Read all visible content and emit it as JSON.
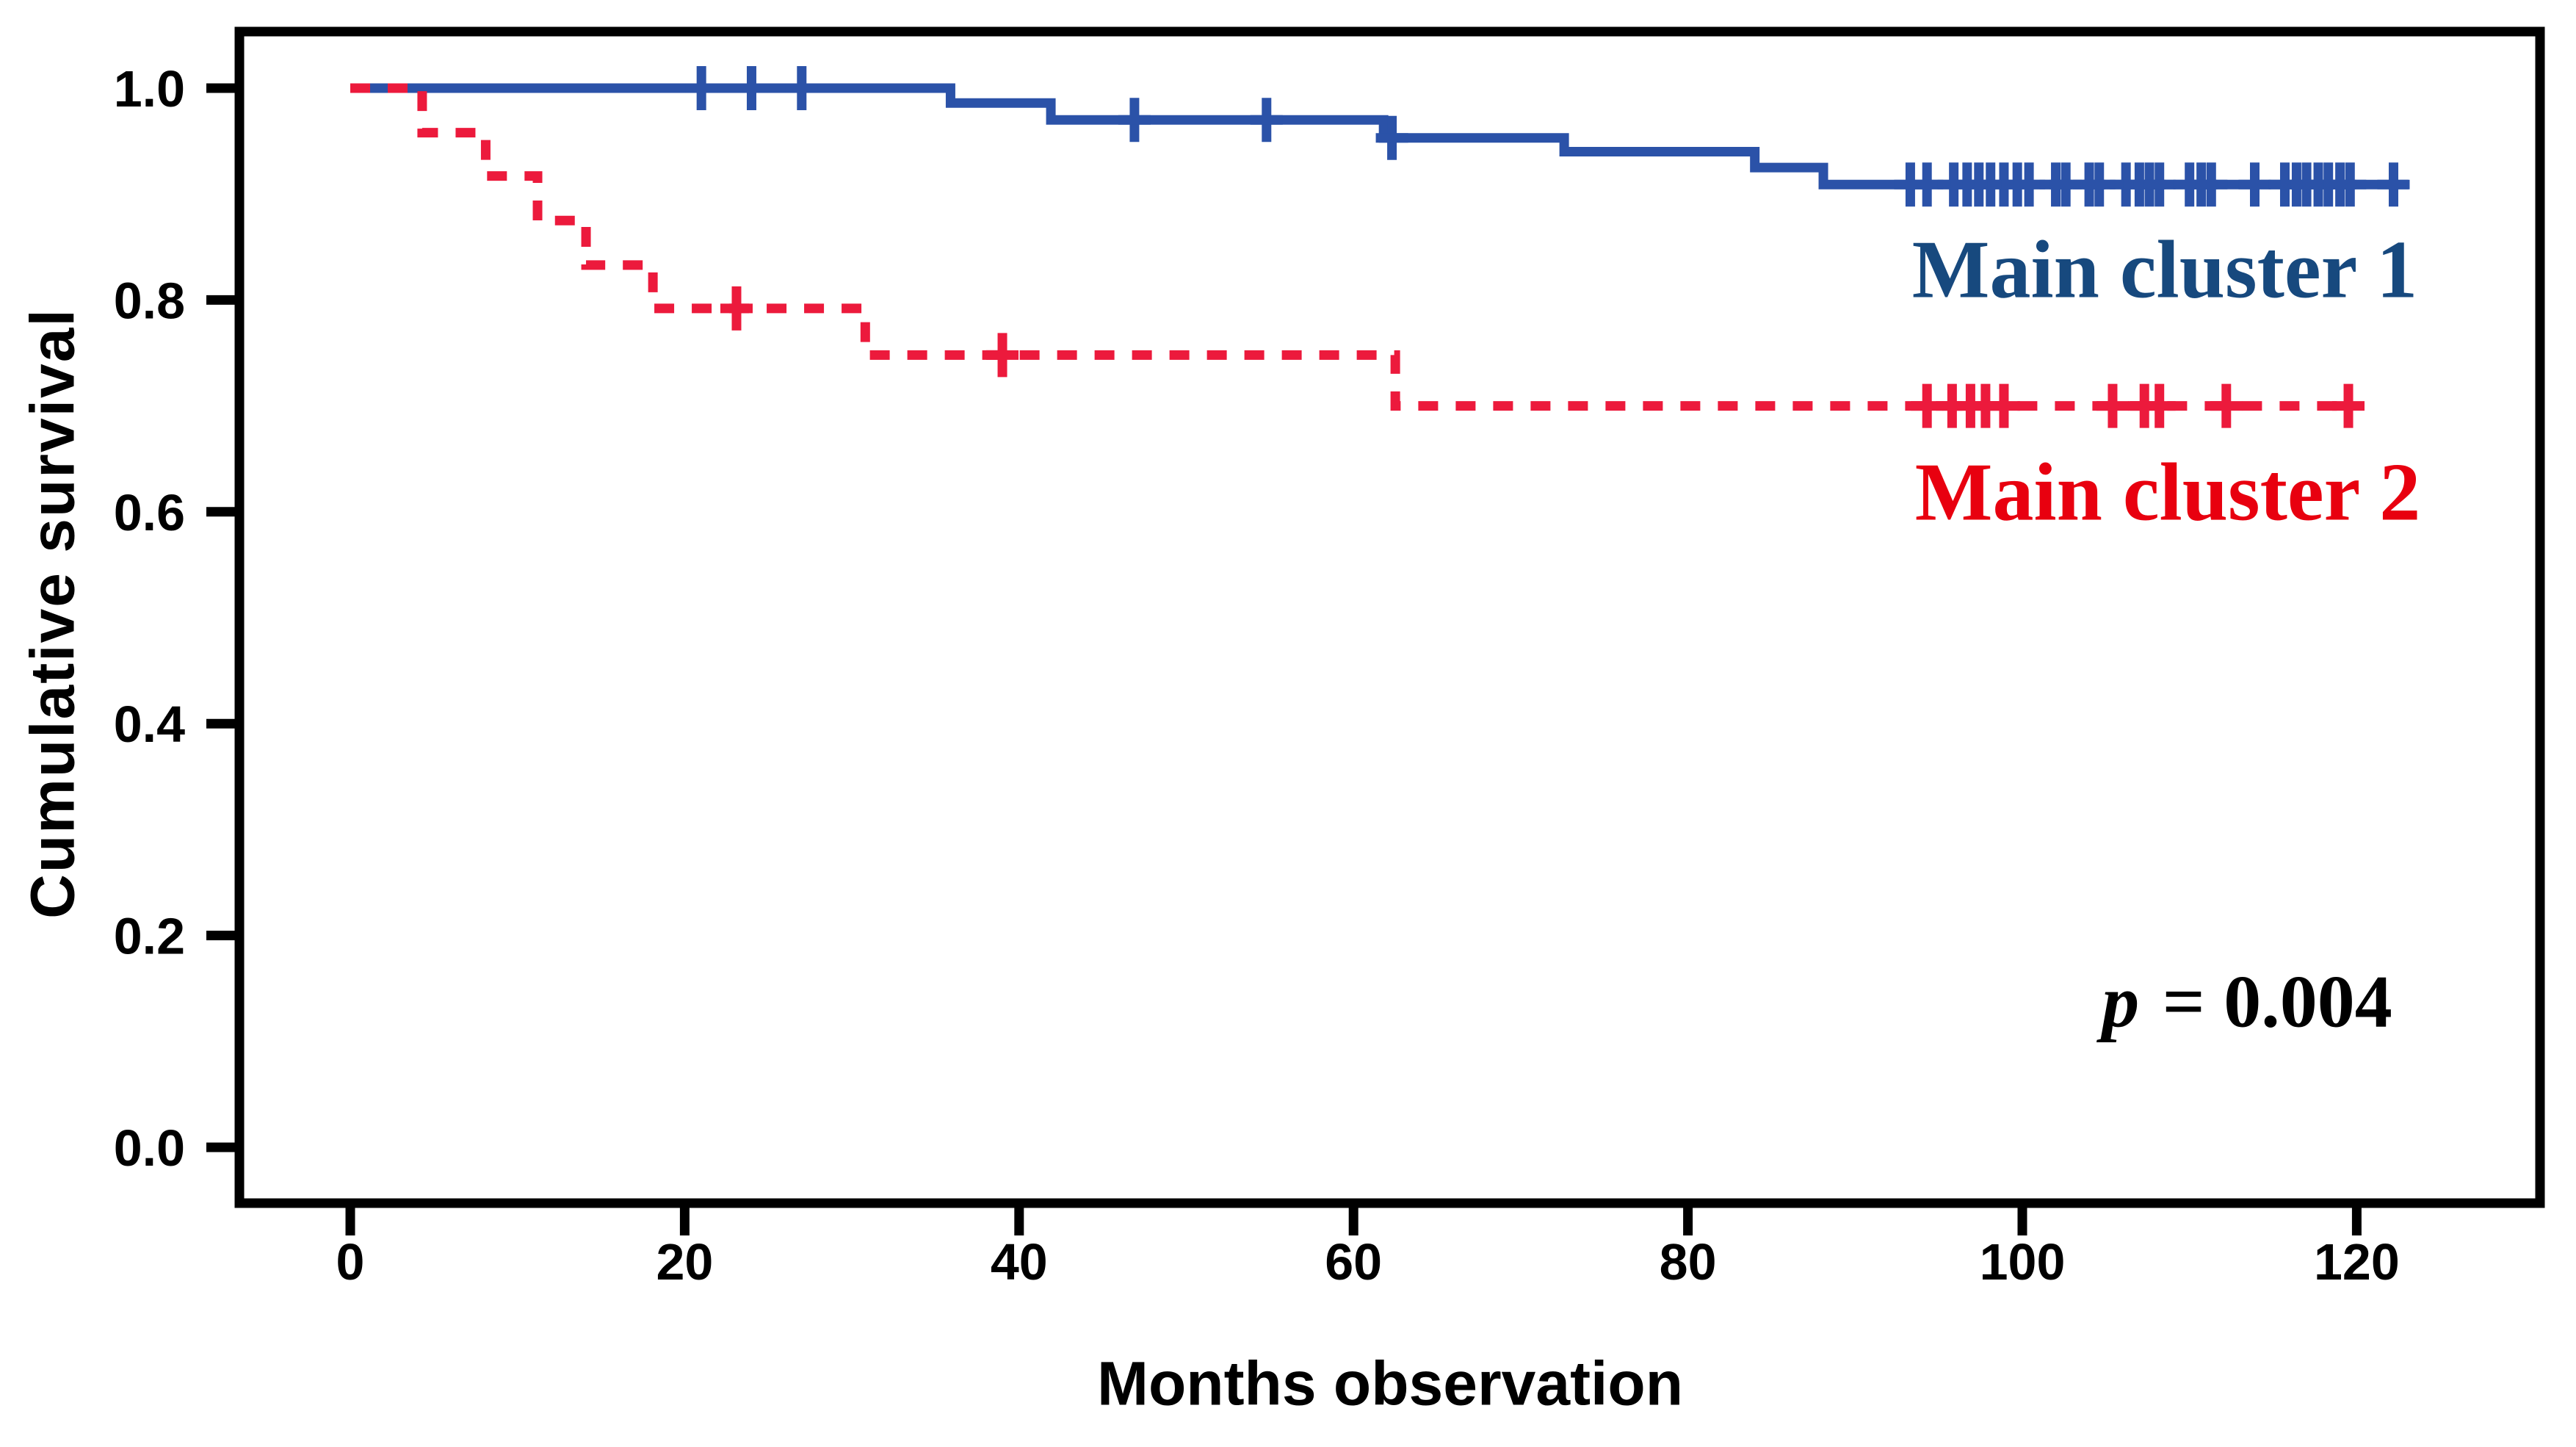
{
  "chart_data": {
    "type": "line",
    "subtype": "kaplan-meier-step",
    "title": "",
    "xlabel": "Months observation",
    "ylabel": "Cumulative survival",
    "xlim": [
      0,
      120
    ],
    "ylim": [
      0.0,
      1.0
    ],
    "grid": "off",
    "legend_position": "inside-right",
    "p_label": {
      "symbol": "p",
      "rest": " = 0.004"
    },
    "x_ticks": [
      {
        "v": 0,
        "label": "0"
      },
      {
        "v": 20,
        "label": "20"
      },
      {
        "v": 40,
        "label": "40"
      },
      {
        "v": 60,
        "label": "60"
      },
      {
        "v": 80,
        "label": "80"
      },
      {
        "v": 100,
        "label": "100"
      },
      {
        "v": 120,
        "label": "120"
      }
    ],
    "y_ticks": [
      {
        "v": 0.0,
        "label": "0.0"
      },
      {
        "v": 0.2,
        "label": "0.2"
      },
      {
        "v": 0.4,
        "label": "0.4"
      },
      {
        "v": 0.6,
        "label": "0.6"
      },
      {
        "v": 0.8,
        "label": "0.8"
      },
      {
        "v": 1.0,
        "label": "1.0"
      }
    ],
    "series": [
      {
        "name": "Main cluster 1",
        "line_color": "#2B52A8",
        "label_color": "#17497E",
        "line_style": "solid",
        "steps": [
          [
            0,
            1.0
          ],
          [
            35.9,
            0.986
          ],
          [
            41.9,
            0.97
          ],
          [
            61.8,
            0.953
          ],
          [
            72.6,
            0.94
          ],
          [
            84.0,
            0.925
          ],
          [
            88.1,
            0.909
          ]
        ],
        "end_month": 123.1,
        "censors": [
          [
            21.0,
            1.0
          ],
          [
            24.0,
            1.0
          ],
          [
            27.0,
            1.0
          ],
          [
            46.9,
            0.97
          ],
          [
            54.8,
            0.97
          ],
          [
            62.3,
            0.953
          ],
          [
            93.3,
            0.909
          ],
          [
            94.3,
            0.909
          ],
          [
            95.9,
            0.909
          ],
          [
            96.7,
            0.909
          ],
          [
            97.4,
            0.909
          ],
          [
            98.1,
            0.909
          ],
          [
            98.9,
            0.909
          ],
          [
            99.7,
            0.909
          ],
          [
            100.4,
            0.909
          ],
          [
            102.0,
            0.909
          ],
          [
            102.6,
            0.909
          ],
          [
            104.0,
            0.909
          ],
          [
            104.6,
            0.909
          ],
          [
            106.2,
            0.909
          ],
          [
            107.0,
            0.909
          ],
          [
            107.6,
            0.909
          ],
          [
            108.2,
            0.909
          ],
          [
            110.0,
            0.909
          ],
          [
            110.7,
            0.909
          ],
          [
            111.3,
            0.909
          ],
          [
            113.9,
            0.909
          ],
          [
            115.7,
            0.909
          ],
          [
            116.4,
            0.909
          ],
          [
            117.0,
            0.909
          ],
          [
            117.7,
            0.909
          ],
          [
            118.3,
            0.909
          ],
          [
            119.0,
            0.909
          ],
          [
            119.6,
            0.909
          ],
          [
            122.2,
            0.909
          ]
        ]
      },
      {
        "name": "Main cluster 2",
        "line_color": "#EC1A3C",
        "label_color": "#E8000F",
        "line_style": "dashed",
        "steps": [
          [
            0,
            1.0
          ],
          [
            4.3,
            0.958
          ],
          [
            8.1,
            0.917
          ],
          [
            11.2,
            0.875
          ],
          [
            14.1,
            0.833
          ],
          [
            18.1,
            0.792
          ],
          [
            30.8,
            0.748
          ],
          [
            62.5,
            0.7
          ]
        ],
        "end_month": 119.5,
        "censors": [
          [
            23.1,
            0.792
          ],
          [
            39.0,
            0.748
          ],
          [
            94.3,
            0.7
          ],
          [
            95.8,
            0.7
          ],
          [
            96.9,
            0.7
          ],
          [
            97.8,
            0.7
          ],
          [
            98.9,
            0.7
          ],
          [
            105.4,
            0.7
          ],
          [
            107.3,
            0.7
          ],
          [
            108.2,
            0.7
          ],
          [
            112.2,
            0.7
          ],
          [
            119.5,
            0.7
          ]
        ]
      }
    ]
  }
}
